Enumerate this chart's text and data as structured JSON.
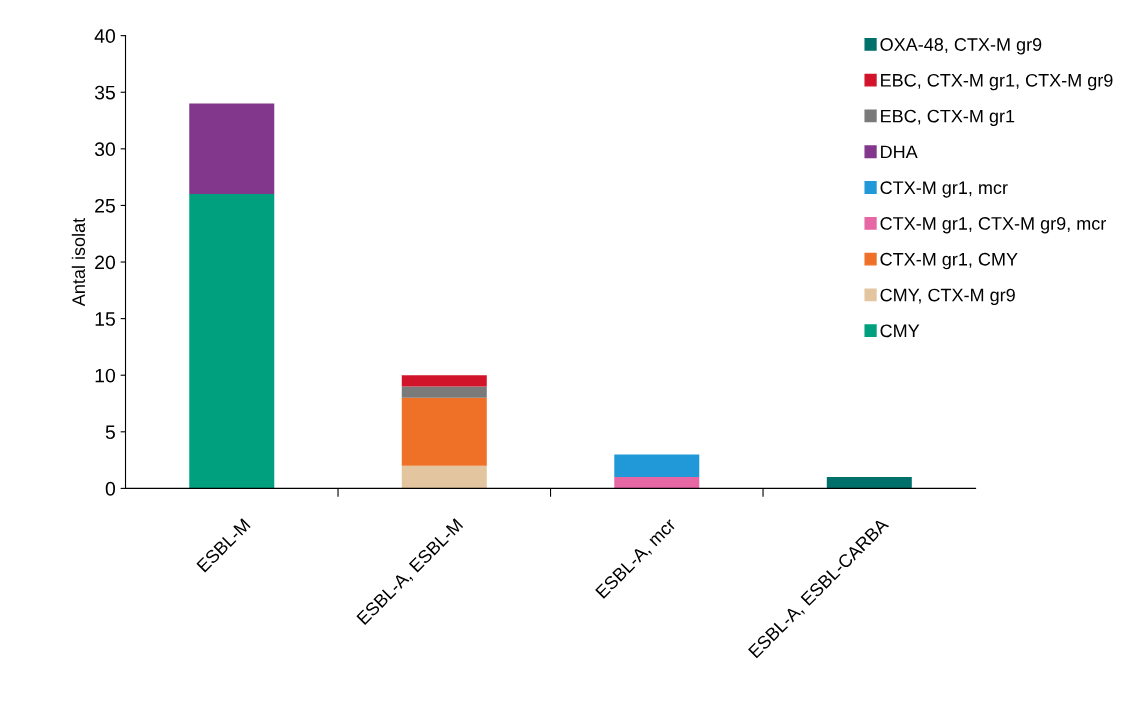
{
  "chart_data": {
    "type": "bar",
    "stacked": true,
    "ylabel": "Antal isolat",
    "categories": [
      "ESBL-M",
      "ESBL-A, ESBL-M",
      "ESBL-A, mcr",
      "ESBL-A, ESBL-CARBA"
    ],
    "series": [
      {
        "name": "CMY",
        "color": "#00a07e",
        "values": [
          26,
          null,
          null,
          null
        ]
      },
      {
        "name": "CMY, CTX-M gr9",
        "color": "#e3c59f",
        "values": [
          null,
          2,
          null,
          null
        ]
      },
      {
        "name": "CTX-M gr1, CMY",
        "color": "#ee7127",
        "values": [
          null,
          6,
          null,
          null
        ]
      },
      {
        "name": "CTX-M gr1, CTX-M gr9, mcr",
        "color": "#e667a4",
        "values": [
          null,
          null,
          1,
          null
        ]
      },
      {
        "name": "CTX-M gr1, mcr",
        "color": "#2199d8",
        "values": [
          null,
          null,
          2,
          null
        ]
      },
      {
        "name": "DHA",
        "color": "#82378c",
        "values": [
          8,
          null,
          null,
          null
        ]
      },
      {
        "name": "EBC, CTX-M gr1",
        "color": "#7a7a7a",
        "values": [
          null,
          1,
          null,
          null
        ]
      },
      {
        "name": "EBC, CTX-M gr1, CTX-M gr9",
        "color": "#d2142a",
        "values": [
          null,
          1,
          null,
          null
        ]
      },
      {
        "name": "OXA-48, CTX-M gr9",
        "color": "#00706a",
        "values": [
          null,
          null,
          null,
          1
        ]
      }
    ],
    "ylim": [
      0,
      40
    ],
    "yticks": [
      0,
      5,
      10,
      15,
      20,
      25,
      30,
      35,
      40
    ],
    "grid": false,
    "legend": "right"
  }
}
